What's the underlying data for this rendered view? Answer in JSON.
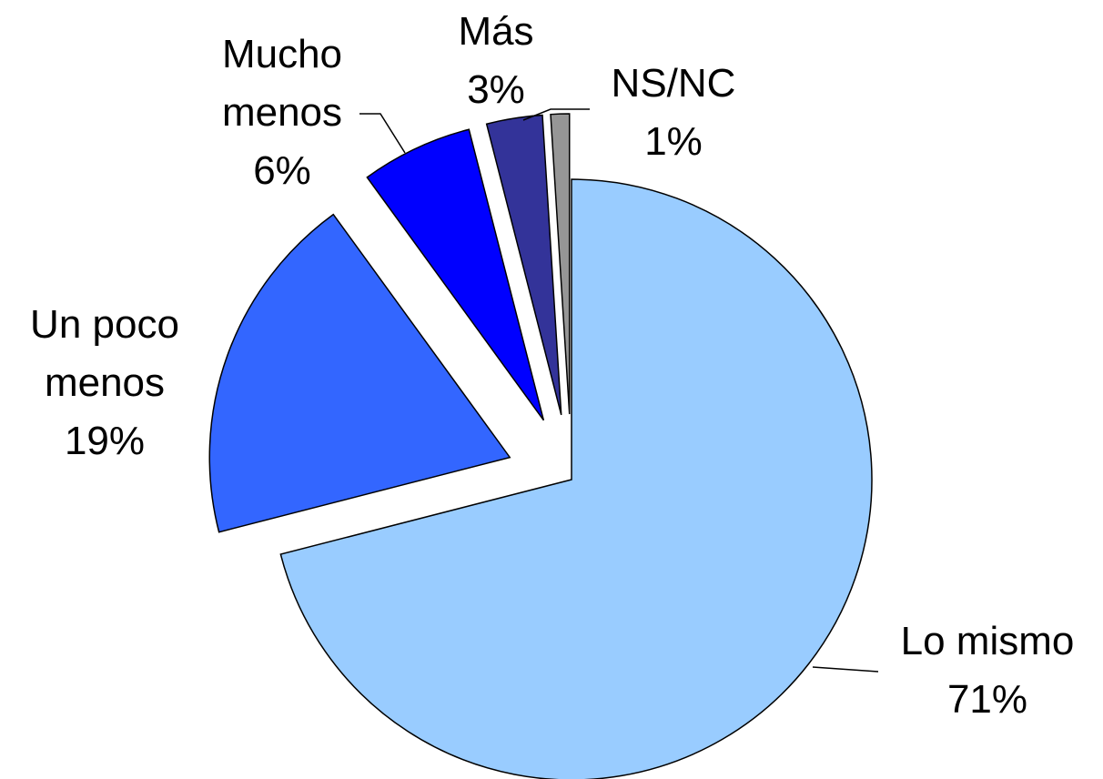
{
  "chart_data": {
    "type": "pie",
    "categories": [
      "Lo mismo",
      "Un poco menos",
      "Mucho menos",
      "Más",
      "NS/NC"
    ],
    "values": [
      71,
      19,
      6,
      3,
      1
    ],
    "value_labels": [
      "71%",
      "19%",
      "6%",
      "3%",
      "1%"
    ],
    "colors": [
      "#99ccff",
      "#3366ff",
      "#0000ff",
      "#333399",
      "#969696"
    ]
  }
}
